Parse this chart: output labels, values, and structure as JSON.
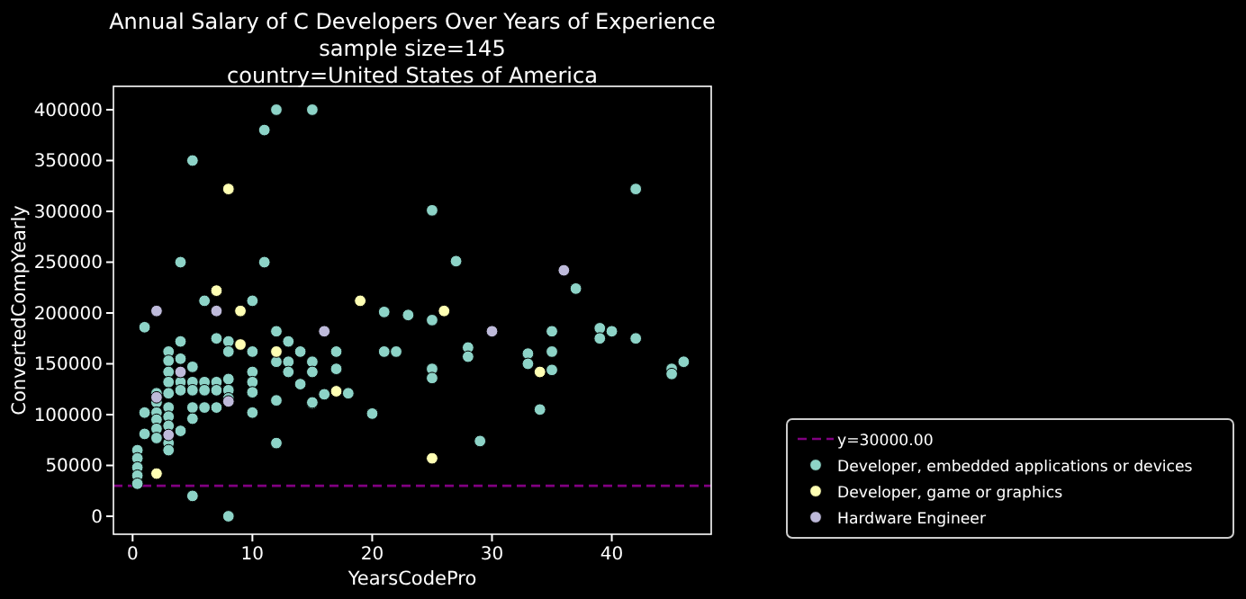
{
  "chart_data": {
    "type": "scatter",
    "title": "Annual Salary of C Developers Over Years of Experience",
    "subtitle": "sample size=145\ncountry=United States of America",
    "xlabel": "YearsCodePro",
    "ylabel": "ConvertedCompYearly",
    "xlim": [
      -1.6,
      48.3
    ],
    "ylim": [
      -17700,
      423000
    ],
    "xticks": [
      0,
      10,
      20,
      30,
      40
    ],
    "yticks": [
      0,
      50000,
      100000,
      150000,
      200000,
      250000,
      300000,
      350000,
      400000
    ],
    "grid": false,
    "legend": "bottom right",
    "marker": "circle",
    "ref_lines": [
      {
        "axis": "y",
        "value": 30000,
        "label": "y=30000.00",
        "color": "#800080",
        "line_style": "dashed"
      }
    ],
    "series": [
      {
        "name": "Developer, embedded applications or devices",
        "color": "#8dd3c7",
        "x": [
          12,
          15,
          11,
          5,
          4,
          11,
          6,
          10,
          1,
          12,
          13,
          3,
          4,
          4,
          3,
          3,
          3,
          3,
          5,
          7,
          8,
          8,
          10,
          12,
          13,
          15,
          14,
          13,
          15,
          14,
          2,
          2,
          4,
          5,
          6,
          7,
          8,
          4,
          5,
          6,
          7,
          8,
          10,
          10,
          10,
          5,
          6,
          7,
          8,
          12,
          15,
          16,
          1,
          1,
          2,
          2,
          2,
          2,
          3,
          3,
          3,
          3,
          3,
          5,
          4,
          10,
          12,
          0.4,
          0.4,
          0.4,
          0.4,
          0.4,
          5,
          8,
          25,
          27,
          21,
          23,
          25,
          17,
          17,
          21,
          22,
          25,
          25,
          28,
          28,
          15,
          18,
          20,
          29,
          42,
          37,
          35,
          33,
          33,
          35,
          35,
          39,
          39,
          40,
          42,
          45,
          45,
          46,
          34
        ],
        "values": [
          400000,
          400000,
          380000,
          350000,
          250000,
          250000,
          212000,
          212000,
          186000,
          182000,
          172000,
          162000,
          172000,
          155000,
          153000,
          142000,
          132000,
          121000,
          147000,
          175000,
          172000,
          162000,
          162000,
          152000,
          152000,
          152000,
          162000,
          142000,
          142000,
          130000,
          121000,
          112000,
          132000,
          132000,
          132000,
          132000,
          135000,
          124000,
          124000,
          124000,
          124000,
          124000,
          142000,
          132000,
          122000,
          107000,
          107000,
          107000,
          116000,
          114000,
          111000,
          120000,
          102000,
          81000,
          102000,
          95000,
          86000,
          77000,
          107000,
          98000,
          89000,
          72000,
          65000,
          96000,
          84000,
          102000,
          72000,
          65000,
          57000,
          48000,
          40000,
          32000,
          20000,
          0,
          301000,
          251000,
          201000,
          198000,
          193000,
          162000,
          145000,
          162000,
          162000,
          145000,
          136000,
          166000,
          157000,
          112000,
          121000,
          101000,
          74000,
          322000,
          224000,
          182000,
          160000,
          150000,
          162000,
          144000,
          185000,
          175000,
          182000,
          175000,
          145000,
          140000,
          152000,
          105000
        ]
      },
      {
        "name": "Developer, game or graphics",
        "color": "#ffffb3",
        "x": [
          2,
          8,
          7,
          9,
          9,
          12,
          19,
          26,
          17,
          25,
          34
        ],
        "values": [
          42000,
          322000,
          222000,
          202000,
          169000,
          162000,
          212000,
          202000,
          123000,
          57000,
          142000
        ]
      },
      {
        "name": "Hardware Engineer",
        "color": "#bebada",
        "x": [
          2,
          2,
          4,
          7,
          3,
          8,
          16,
          30,
          36
        ],
        "values": [
          202000,
          117000,
          142000,
          202000,
          80000,
          113000,
          182000,
          182000,
          242000
        ]
      }
    ]
  }
}
